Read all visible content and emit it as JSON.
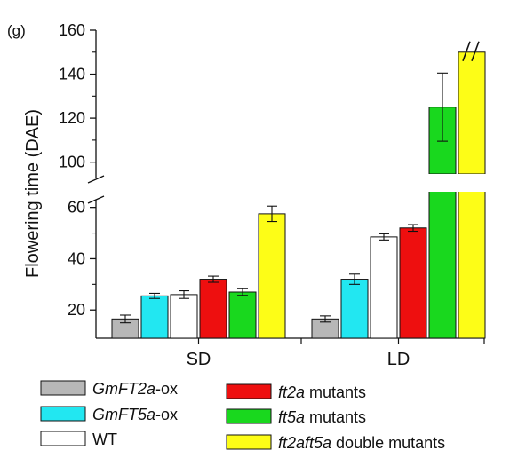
{
  "chart_data": {
    "type": "bar",
    "panel_label": "(g)",
    "ylabel": "Flowering time (DAE)",
    "y_axis_break": true,
    "lower_segment": {
      "ylim": [
        9,
        63
      ],
      "ticks": [
        20,
        40,
        60
      ]
    },
    "upper_segment": {
      "ylim": [
        93,
        160
      ],
      "ticks": [
        100,
        120,
        140,
        160
      ]
    },
    "categories": [
      "SD",
      "LD"
    ],
    "series": [
      {
        "name": "GmFT2a-ox",
        "name_italic": "GmFT2a",
        "name_plain": "-ox",
        "color": "#b7b7b7",
        "values": [
          16.5,
          16.5
        ],
        "errors": [
          1.5,
          1.2
        ]
      },
      {
        "name": "GmFT5a-ox",
        "name_italic": "GmFT5a",
        "name_plain": "-ox",
        "color": "#22e7f1",
        "values": [
          25.5,
          32.0
        ],
        "errors": [
          1.0,
          2.0
        ]
      },
      {
        "name": "WT",
        "name_italic": "",
        "name_plain": "WT",
        "color": "#ffffff",
        "values": [
          26.0,
          48.5
        ],
        "errors": [
          1.5,
          1.2
        ]
      },
      {
        "name": "ft2a mutants",
        "name_italic": "ft2a",
        "name_plain": " mutants",
        "color": "#ee0f0f",
        "values": [
          32.0,
          52.0
        ],
        "errors": [
          1.2,
          1.3
        ]
      },
      {
        "name": "ft5a mutants",
        "name_italic": "ft5a",
        "name_plain": " mutants",
        "color": "#19d81e",
        "values": [
          27.0,
          125.0
        ],
        "errors": [
          1.3,
          15.5
        ]
      },
      {
        "name": "ft2aft5a double mutants",
        "name_italic": "ft2aft5a",
        "name_plain": " double mutants",
        "color": "#fdfd17",
        "values": [
          57.5,
          150.0
        ],
        "errors": [
          3.0,
          null
        ]
      }
    ],
    "legend_placement": "bottom"
  }
}
